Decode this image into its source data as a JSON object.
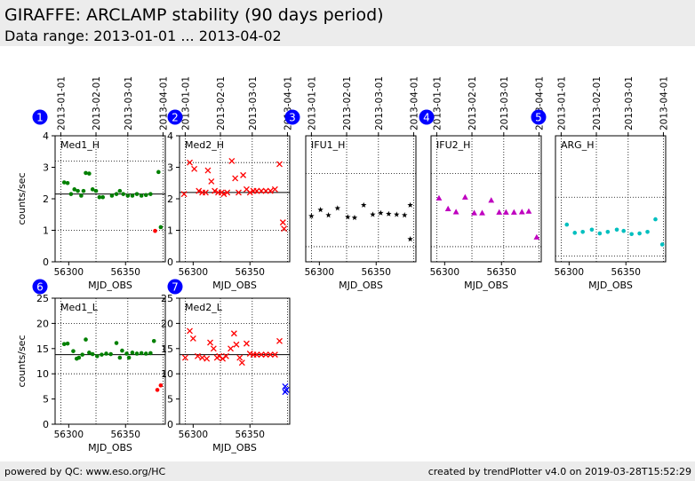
{
  "header": {
    "title": "GIRAFFE: ARCLAMP stability (90 days period)",
    "subtitle": "Data range: 2013-01-01 ... 2013-04-02"
  },
  "footer": {
    "left": "powered by QC: www.eso.org/HC",
    "right": "created by trendPlotter v4.0 on 2019-03-28T15:52:29"
  },
  "colors": {
    "header_bg": "#ececec",
    "badge": "#0000ff",
    "green": "#008000",
    "red": "#ff0000",
    "black": "#000000",
    "magenta": "#bf00bf",
    "cyan": "#00bfbf",
    "blue": "#0000ff"
  },
  "chart_data": [
    {
      "type": "scatter",
      "badge": "1",
      "label": "Med1_H",
      "xlabel": "MJD_OBS",
      "ylabel": "counts/sec",
      "xlim": [
        56288,
        56385
      ],
      "ylim": [
        0,
        4
      ],
      "xticks": [
        56300,
        56350
      ],
      "yticks": [
        0,
        1,
        2,
        3,
        4
      ],
      "date_ticks": [
        "2013-01-01",
        "2013-02-01",
        "2013-03-01",
        "2013-04-01"
      ],
      "date_tick_mjd": [
        56293,
        56324,
        56352,
        56383
      ],
      "reference_line": 2.15,
      "limit_lines": [
        3.2,
        1.0
      ],
      "series": [
        {
          "color": "#008000",
          "marker": "dot",
          "x": [
            56296,
            56299,
            56302,
            56305,
            56308,
            56311,
            56313,
            56315,
            56318,
            56321,
            56324,
            56327,
            56330,
            56338,
            56342,
            56345,
            56348,
            56352,
            56356,
            56360,
            56364,
            56368,
            56372,
            56379,
            56381
          ],
          "y": [
            2.52,
            2.5,
            2.15,
            2.3,
            2.25,
            2.1,
            2.25,
            2.82,
            2.8,
            2.3,
            2.25,
            2.05,
            2.05,
            2.1,
            2.15,
            2.25,
            2.15,
            2.1,
            2.1,
            2.15,
            2.1,
            2.12,
            2.15,
            2.85,
            1.1
          ]
        },
        {
          "color": "#ff0000",
          "marker": "dot",
          "x": [
            56376
          ],
          "y": [
            0.98
          ]
        }
      ]
    },
    {
      "type": "scatter",
      "badge": "2",
      "label": "Med2_H",
      "xlabel": "MJD_OBS",
      "ylabel": "",
      "xlim": [
        56288,
        56385
      ],
      "ylim": [
        0,
        4
      ],
      "xticks": [
        56300,
        56350
      ],
      "yticks": [
        0,
        1,
        2,
        3,
        4
      ],
      "date_ticks": [
        "2013-01-01",
        "2013-02-01",
        "2013-03-01",
        "2013-04-01"
      ],
      "date_tick_mjd": [
        56293,
        56324,
        56352,
        56383
      ],
      "reference_line": 2.2,
      "limit_lines": [
        3.15,
        1.0
      ],
      "series": [
        {
          "color": "#ff0000",
          "marker": "x",
          "x": [
            56292,
            56297,
            56301,
            56305,
            56308,
            56311,
            56313,
            56316,
            56319,
            56322,
            56325,
            56327,
            56330,
            56334,
            56337,
            56340,
            56344,
            56347,
            56350,
            56353,
            56356,
            56360,
            56364,
            56368,
            56372,
            56376,
            56379,
            56380
          ],
          "y": [
            2.15,
            3.15,
            2.95,
            2.25,
            2.2,
            2.2,
            2.9,
            2.55,
            2.25,
            2.2,
            2.2,
            2.15,
            2.2,
            3.2,
            2.65,
            2.2,
            2.75,
            2.3,
            2.2,
            2.25,
            2.25,
            2.25,
            2.25,
            2.25,
            2.3,
            3.1,
            1.25,
            1.05
          ]
        }
      ]
    },
    {
      "type": "scatter",
      "badge": "3",
      "label": "IFU1_H",
      "xlabel": "MJD_OBS",
      "ylabel": "",
      "xlim": [
        56288,
        56385
      ],
      "ylim": [
        0,
        4
      ],
      "xticks": [
        56300,
        56350
      ],
      "yticks": [],
      "date_ticks": [
        "2013-01-01",
        "2013-02-01",
        "2013-03-01",
        "2013-04-01"
      ],
      "date_tick_mjd": [
        56293,
        56324,
        56352,
        56383
      ],
      "reference_line": null,
      "limit_lines": [
        2.8,
        0.48
      ],
      "series": [
        {
          "color": "#000000",
          "marker": "star",
          "x": [
            56293,
            56301,
            56308,
            56316,
            56325,
            56331,
            56339,
            56347,
            56354,
            56361,
            56368,
            56375,
            56380,
            56380
          ],
          "y": [
            1.45,
            1.65,
            1.48,
            1.7,
            1.42,
            1.4,
            1.8,
            1.5,
            1.55,
            1.52,
            1.5,
            1.48,
            1.8,
            0.72
          ]
        }
      ]
    },
    {
      "type": "scatter",
      "badge": "4",
      "label": "IFU2_H",
      "xlabel": "MJD_OBS",
      "ylabel": "",
      "xlim": [
        56288,
        56385
      ],
      "ylim": [
        0,
        4
      ],
      "xticks": [
        56300,
        56350
      ],
      "yticks": [],
      "date_ticks": [
        "2013-01-01",
        "2013-02-01",
        "2013-03-01",
        "2013-04-01"
      ],
      "date_tick_mjd": [
        56293,
        56324,
        56352,
        56383
      ],
      "reference_line": null,
      "limit_lines": [
        2.8,
        0.48
      ],
      "series": [
        {
          "color": "#bf00bf",
          "marker": "triangle",
          "x": [
            56295,
            56303,
            56310,
            56318,
            56326,
            56333,
            56341,
            56348,
            56354,
            56361,
            56368,
            56374,
            56381
          ],
          "y": [
            2.02,
            1.68,
            1.58,
            2.05,
            1.55,
            1.55,
            1.95,
            1.57,
            1.57,
            1.57,
            1.58,
            1.6,
            0.78
          ]
        }
      ]
    },
    {
      "type": "scatter",
      "badge": "5",
      "label": "ARG_H",
      "xlabel": "MJD_OBS",
      "ylabel": "",
      "xlim": [
        56288,
        56385
      ],
      "ylim": [
        0,
        4
      ],
      "xticks": [
        56300,
        56350
      ],
      "yticks": [],
      "date_ticks": [
        "2013-01-01",
        "2013-02-01",
        "2013-03-01",
        "2013-04-01"
      ],
      "date_tick_mjd": [
        56293,
        56324,
        56352,
        56383
      ],
      "reference_line": null,
      "limit_lines": [
        2.05,
        0.18
      ],
      "series": [
        {
          "color": "#00bfbf",
          "marker": "dot",
          "x": [
            56298,
            56305,
            56312,
            56320,
            56327,
            56334,
            56342,
            56348,
            56355,
            56362,
            56369,
            56376,
            56382
          ],
          "y": [
            1.18,
            0.92,
            0.95,
            1.02,
            0.9,
            0.95,
            1.02,
            0.98,
            0.88,
            0.9,
            0.95,
            1.35,
            0.55
          ]
        }
      ]
    },
    {
      "type": "scatter",
      "badge": "6",
      "label": "Med1_L",
      "xlabel": "MJD_OBS",
      "ylabel": "counts/sec",
      "xlim": [
        56288,
        56385
      ],
      "ylim": [
        0,
        25
      ],
      "xticks": [
        56300,
        56350
      ],
      "yticks": [
        0,
        5,
        10,
        15,
        20,
        25
      ],
      "date_ticks": [],
      "date_tick_mjd": [
        56293,
        56324,
        56352,
        56383
      ],
      "reference_line": 13.8,
      "limit_lines": [
        20.0,
        10.0
      ],
      "series": [
        {
          "color": "#008000",
          "marker": "dot",
          "x": [
            56296,
            56299,
            56304,
            56307,
            56309,
            56312,
            56315,
            56318,
            56321,
            56325,
            56329,
            56333,
            56337,
            56342,
            56345,
            56347,
            56351,
            56353,
            56356,
            56360,
            56364,
            56368,
            56372,
            56375
          ],
          "y": [
            15.9,
            16.0,
            14.5,
            13.0,
            13.2,
            13.8,
            16.8,
            14.2,
            13.9,
            13.5,
            13.8,
            14.0,
            13.9,
            16.1,
            13.2,
            14.6,
            14.0,
            13.2,
            14.2,
            14.0,
            14.1,
            14.0,
            14.1,
            16.5
          ]
        },
        {
          "color": "#ff0000",
          "marker": "dot",
          "x": [
            56378,
            56381
          ],
          "y": [
            6.8,
            7.7
          ]
        }
      ]
    },
    {
      "type": "scatter",
      "badge": "7",
      "label": "Med2_L",
      "xlabel": "MJD_OBS",
      "ylabel": "",
      "xlim": [
        56288,
        56385
      ],
      "ylim": [
        0,
        25
      ],
      "xticks": [
        56300,
        56350
      ],
      "yticks": [
        0,
        5,
        10,
        15,
        20,
        25
      ],
      "date_ticks": [],
      "date_tick_mjd": [
        56293,
        56324,
        56352,
        56383
      ],
      "reference_line": 13.8,
      "limit_lines": [
        20.0,
        10.0
      ],
      "series": [
        {
          "color": "#ff0000",
          "marker": "x",
          "x": [
            56293,
            56297,
            56300,
            56304,
            56308,
            56312,
            56315,
            56318,
            56321,
            56323,
            56326,
            56329,
            56333,
            56336,
            56338,
            56341,
            56343,
            56347,
            56350,
            56353,
            56356,
            56360,
            56364,
            56368,
            56372,
            56376
          ],
          "y": [
            13.2,
            18.5,
            17.0,
            13.5,
            13.2,
            13.0,
            16.2,
            15.0,
            13.2,
            13.5,
            13.0,
            13.5,
            15.0,
            18.0,
            15.8,
            13.2,
            12.2,
            16.0,
            14.0,
            13.8,
            13.8,
            13.8,
            13.8,
            13.8,
            13.8,
            16.5
          ]
        },
        {
          "color": "#0000ff",
          "marker": "x",
          "x": [
            56381,
            56382,
            56381
          ],
          "y": [
            7.5,
            6.8,
            6.4
          ]
        }
      ]
    }
  ]
}
